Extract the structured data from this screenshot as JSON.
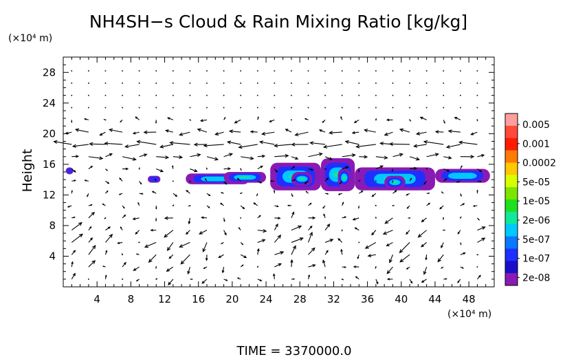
{
  "chart_data": {
    "type": "heatmap",
    "title": "NH4SH−s Cloud & Rain Mixing Ratio [kg/kg]",
    "ylabel": "Height",
    "x_unit_label": "(×10⁴ m)",
    "y_unit_label": "(×10⁴ m)",
    "footer": "TIME  =  3370000.0",
    "xlim": [
      0,
      51
    ],
    "ylim": [
      0,
      30
    ],
    "x_ticks": [
      "4",
      "8",
      "12",
      "16",
      "20",
      "24",
      "28",
      "32",
      "36",
      "40",
      "44",
      "48"
    ],
    "y_ticks": [
      "4",
      "8",
      "12",
      "16",
      "20",
      "24",
      "28"
    ],
    "colorbar": {
      "labels": [
        "0.005",
        "0.001",
        "0.0002",
        "5e-05",
        "1e-05",
        "2e-06",
        "5e-07",
        "1e-07",
        "2e-08"
      ],
      "colors": [
        "#ff9e9e",
        "#ff4a3a",
        "#ff1a00",
        "#ff7a00",
        "#ffc800",
        "#d8ff00",
        "#7ce600",
        "#1ee01e",
        "#10e89a",
        "#00c8ff",
        "#0a78ff",
        "#1f2fff",
        "#1a0fc8",
        "#8a1ab4"
      ]
    },
    "cloud_cells": [
      {
        "x0": 0.3,
        "x1": 1.2,
        "y0": 14.7,
        "y1": 15.6,
        "level": 1
      },
      {
        "x0": 10.0,
        "x1": 11.5,
        "y0": 13.6,
        "y1": 14.5,
        "level": 1
      },
      {
        "x0": 14.5,
        "x1": 22.0,
        "y0": 13.4,
        "y1": 14.8,
        "level": 2
      },
      {
        "x0": 19.0,
        "x1": 24.0,
        "y0": 13.6,
        "y1": 15.0,
        "level": 3
      },
      {
        "x0": 24.5,
        "x1": 30.5,
        "y0": 12.6,
        "y1": 16.2,
        "level": 3
      },
      {
        "x0": 27.0,
        "x1": 29.5,
        "y0": 13.2,
        "y1": 15.0,
        "level": 5
      },
      {
        "x0": 30.5,
        "x1": 34.5,
        "y0": 12.5,
        "y1": 16.8,
        "level": 3
      },
      {
        "x0": 32.5,
        "x1": 34.0,
        "y0": 13.0,
        "y1": 15.5,
        "level": 5
      },
      {
        "x0": 34.5,
        "x1": 44.0,
        "y0": 12.6,
        "y1": 15.6,
        "level": 3
      },
      {
        "x0": 38.0,
        "x1": 40.5,
        "y0": 12.8,
        "y1": 14.5,
        "level": 5
      },
      {
        "x0": 44.0,
        "x1": 50.5,
        "y0": 13.6,
        "y1": 15.4,
        "level": 2
      }
    ]
  }
}
